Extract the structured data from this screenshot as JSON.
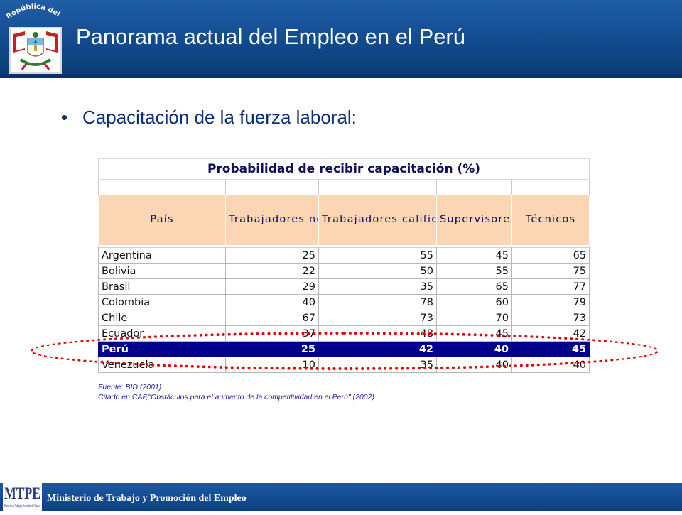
{
  "header": {
    "title": "Panorama actual del Empleo en el Perú",
    "seal_text": "República del Perú",
    "seal_icon": "coat-of-arms-icon",
    "colors": {
      "band": "#124a8c",
      "band_dark": "#08306a"
    }
  },
  "bullet": {
    "marker": "•",
    "text": "Capacitación de la fuerza laboral:"
  },
  "table": {
    "title": "Probabilidad de recibir capacitación (%)",
    "columns": [
      "País",
      "Trabajadores no calificados",
      "Trabajadores calificados",
      "Supervisores",
      "Técnicos"
    ],
    "rows": [
      {
        "pais": "Argentina",
        "no_calificados": "25",
        "calificados": "55",
        "supervisores": "45",
        "tecnicos": "65"
      },
      {
        "pais": "Bolivia",
        "no_calificados": "22",
        "calificados": "50",
        "supervisores": "55",
        "tecnicos": "75"
      },
      {
        "pais": "Brasil",
        "no_calificados": "29",
        "calificados": "35",
        "supervisores": "65",
        "tecnicos": "77"
      },
      {
        "pais": "Colombia",
        "no_calificados": "40",
        "calificados": "78",
        "supervisores": "60",
        "tecnicos": "79"
      },
      {
        "pais": "Chile",
        "no_calificados": "67",
        "calificados": "73",
        "supervisores": "70",
        "tecnicos": "73"
      },
      {
        "pais": "Ecuador",
        "no_calificados": "37",
        "calificados": "48",
        "supervisores": "45",
        "tecnicos": "42"
      },
      {
        "pais": "Perú",
        "no_calificados": "25",
        "calificados": "42",
        "supervisores": "40",
        "tecnicos": "45"
      },
      {
        "pais": "Venezuela",
        "no_calificados": "10",
        "calificados": "35",
        "supervisores": "40",
        "tecnicos": "40"
      }
    ],
    "highlight_color": "#00008c",
    "header_color": "#fcd5b4",
    "oval_color": "#e10000"
  },
  "source": {
    "line1": "Fuente: BID (2001)",
    "line2": "Citado en CAF,\"Obstáculos para el aumento de la competitividad en el Perú\" (2002)"
  },
  "footer": {
    "text": "Ministerio de Trabajo y Promoción del Empleo",
    "logo_letters": "MTPE",
    "logo_caption": "Ministerio de Trabajo y Promoción del Empleo",
    "logo_icon": "mtpe-logo-icon"
  }
}
